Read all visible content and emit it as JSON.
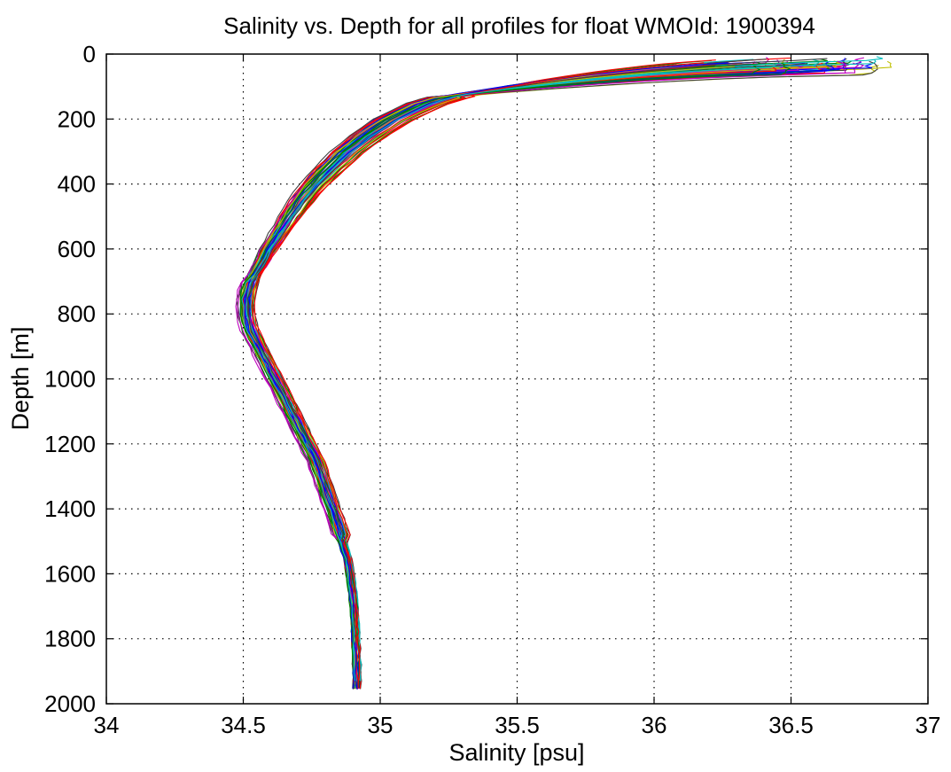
{
  "chart_data": {
    "type": "line",
    "title": "Salinity vs. Depth for all profiles for float WMOId: 1900394",
    "xlabel": "Salinity [psu]",
    "ylabel": "Depth [m]",
    "xlim": [
      34,
      37
    ],
    "ylim": [
      0,
      2000
    ],
    "y_reversed": true,
    "grid": true,
    "legend": "none",
    "xticks": [
      34,
      34.5,
      35,
      35.5,
      36,
      36.5,
      37
    ],
    "xtick_labels": [
      "34",
      "34.5",
      "35",
      "35.5",
      "36",
      "36.5",
      "37"
    ],
    "yticks": [
      0,
      200,
      400,
      600,
      800,
      1000,
      1200,
      1400,
      1600,
      1800,
      2000
    ],
    "ytick_labels": [
      "0",
      "200",
      "400",
      "600",
      "800",
      "1000",
      "1200",
      "1400",
      "1600",
      "1800",
      "2000"
    ],
    "profile_count": 60,
    "mean_profile": {
      "depth": [
        0,
        10,
        25,
        40,
        55,
        70,
        85,
        100,
        120,
        150,
        200,
        250,
        300,
        350,
        400,
        450,
        500,
        550,
        600,
        650,
        700,
        750,
        800,
        850,
        900,
        950,
        1000,
        1050,
        1100,
        1150,
        1200,
        1250,
        1300,
        1350,
        1400,
        1450,
        1500,
        1550,
        1600,
        1700,
        1800,
        1900,
        1950
      ],
      "salinity": [
        36.65,
        36.65,
        36.62,
        36.5,
        36.2,
        35.85,
        35.6,
        35.45,
        35.3,
        35.18,
        35.05,
        34.96,
        34.88,
        34.82,
        34.76,
        34.71,
        34.67,
        34.63,
        34.59,
        34.56,
        34.52,
        34.505,
        34.505,
        34.52,
        34.55,
        34.58,
        34.61,
        34.64,
        34.67,
        34.7,
        34.73,
        34.76,
        34.78,
        34.8,
        34.82,
        34.84,
        34.86,
        34.88,
        34.89,
        34.905,
        34.91,
        34.915,
        34.915
      ]
    },
    "colors": [
      "#0000ff",
      "#008000",
      "#ff0000",
      "#00bfbf",
      "#bf00bf",
      "#bfbf00",
      "#404040"
    ]
  }
}
